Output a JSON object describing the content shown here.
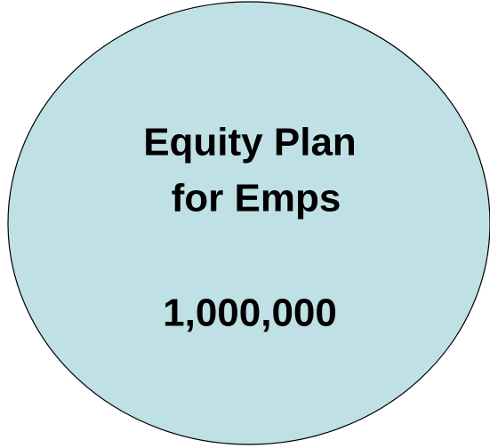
{
  "shape": {
    "label_lines": [
      "Equity Plan",
      "for Emps"
    ],
    "value": "1,000,000"
  }
}
